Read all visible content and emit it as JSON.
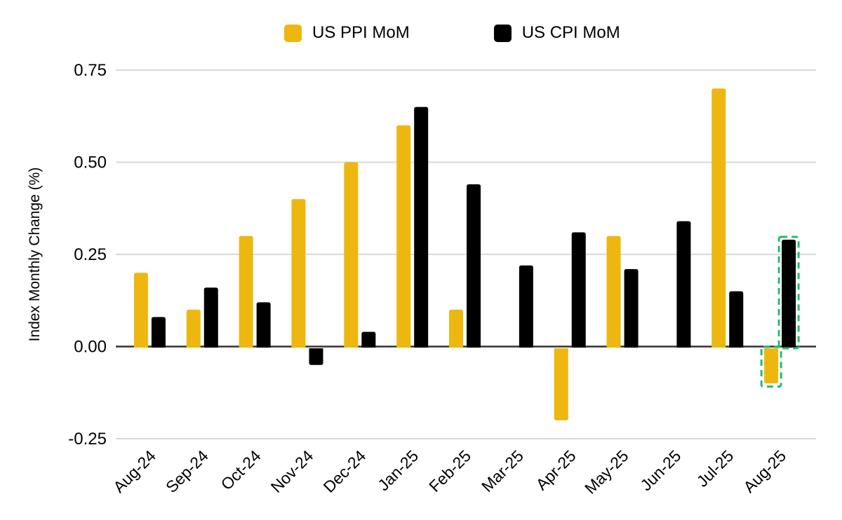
{
  "chart_data": {
    "type": "bar",
    "title": "",
    "categories": [
      "Aug-24",
      "Sep-24",
      "Oct-24",
      "Nov-24",
      "Dec-24",
      "Jan-25",
      "Feb-25",
      "Mar-25",
      "Apr-25",
      "May-25",
      "Jun-25",
      "Jul-25",
      "Aug-25"
    ],
    "series": [
      {
        "name": "US PPI MoM",
        "color": "#EDB70F",
        "values": [
          0.2,
          0.1,
          0.3,
          0.4,
          0.5,
          0.6,
          0.1,
          0.0,
          -0.2,
          0.3,
          0.0,
          0.7,
          -0.1
        ]
      },
      {
        "name": "US CPI MoM",
        "color": "#000000",
        "values": [
          0.08,
          0.16,
          0.12,
          -0.05,
          0.04,
          0.65,
          0.44,
          0.22,
          0.31,
          0.21,
          0.34,
          0.15,
          0.29
        ]
      }
    ],
    "xlabel": "",
    "ylabel": "Index Monthly Change (%)",
    "ylim": [
      -0.25,
      0.75
    ],
    "yticks": [
      {
        "label": "0.75",
        "value": 0.75
      },
      {
        "label": "0.50",
        "value": 0.5
      },
      {
        "label": "0.25",
        "value": 0.25
      },
      {
        "label": "0.00",
        "value": 0
      },
      {
        "label": "-0.25",
        "value": -0.25
      }
    ],
    "grid": true,
    "legend_position": "top",
    "highlight": {
      "category": "Aug-25",
      "style": "dashed-outline",
      "color": "#1DBE71"
    },
    "colors": {
      "background": "#FFFFFF",
      "gridline": "#D9D9D9",
      "zero_line": "#333333",
      "text": "#000000"
    }
  }
}
